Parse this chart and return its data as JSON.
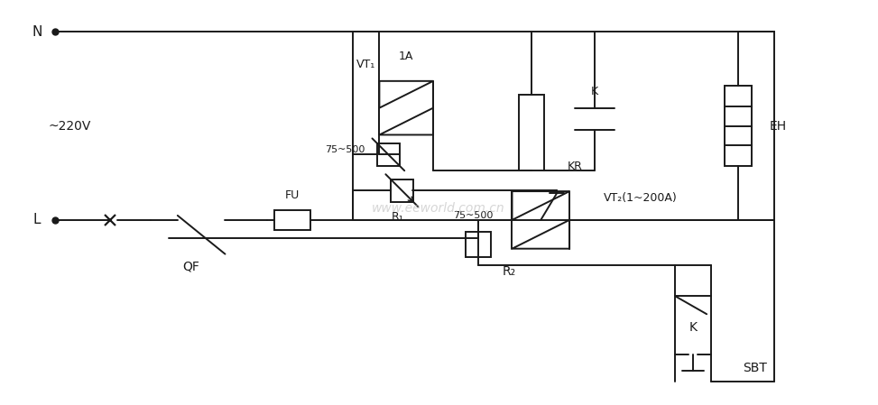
{
  "bg_color": "#ffffff",
  "line_color": "#1a1a1a",
  "watermark": "www.eeworld.com.cn",
  "watermark_color": "#bbbbbb",
  "fig_width": 9.73,
  "fig_height": 4.49,
  "labels": {
    "L": "L",
    "N": "N",
    "QF": "QF",
    "FU": "FU",
    "R1": "R₁",
    "R2": "R₂",
    "VT1": "VT₁",
    "VT2": "VT₂(1~200A)",
    "KR": "KR",
    "K_upper": "K",
    "K_lower": "K",
    "SBT": "SBT",
    "EH": "EH",
    "voltage": "~220V",
    "range1": "75~500",
    "range2": "75~500",
    "current": "1A"
  }
}
